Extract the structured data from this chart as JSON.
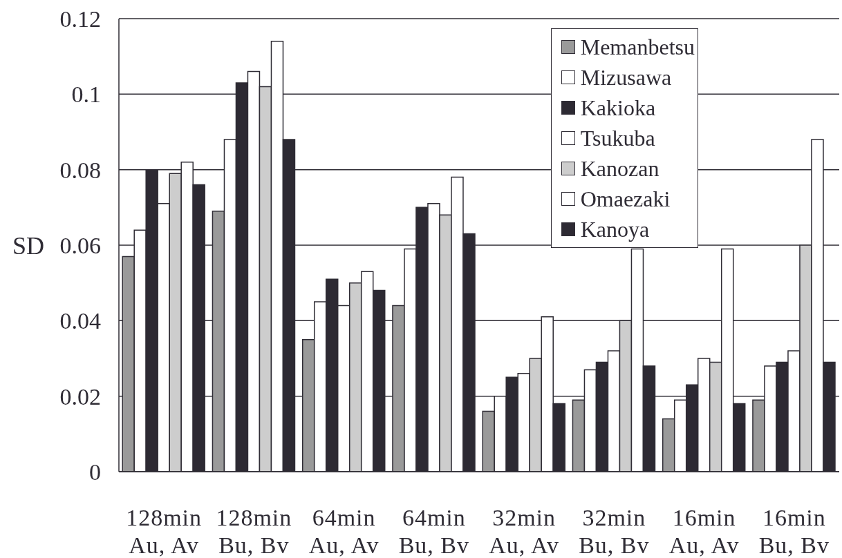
{
  "chart_data": {
    "type": "bar",
    "ylabel": "SD",
    "categories": [
      "128min\nAu, Av",
      "128min\nBu, Bv",
      "64min\nAu, Av",
      "64min\nBu, Bv",
      "32min\nAu, Av",
      "32min\nBu, Bv",
      "16min\nAu, Av",
      "16min\nBu, Bv"
    ],
    "series": [
      {
        "name": "Memanbetsu",
        "color": "#9a9a9a",
        "values": [
          0.057,
          0.069,
          0.035,
          0.044,
          0.016,
          0.019,
          0.014,
          0.019
        ]
      },
      {
        "name": "Mizusawa",
        "color": "#ffffff",
        "values": [
          0.064,
          0.088,
          0.045,
          0.059,
          0.02,
          0.027,
          0.019,
          0.028
        ]
      },
      {
        "name": "Kakioka",
        "color": "#2d2a33",
        "values": [
          0.08,
          0.103,
          0.051,
          0.07,
          0.025,
          0.029,
          0.023,
          0.029
        ]
      },
      {
        "name": "Tsukuba",
        "color": "#ffffff",
        "values": [
          0.071,
          0.106,
          0.044,
          0.071,
          0.026,
          0.032,
          0.03,
          0.032
        ]
      },
      {
        "name": "Kanozan",
        "color": "#cdcdcd",
        "values": [
          0.079,
          0.102,
          0.05,
          0.068,
          0.03,
          0.04,
          0.029,
          0.06
        ]
      },
      {
        "name": "Omaezaki",
        "color": "#ffffff",
        "values": [
          0.082,
          0.114,
          0.053,
          0.078,
          0.041,
          0.059,
          0.059,
          0.088
        ]
      },
      {
        "name": "Kanoya",
        "color": "#2d2a33",
        "values": [
          0.076,
          0.088,
          0.048,
          0.063,
          0.018,
          0.028,
          0.018,
          0.029
        ]
      }
    ],
    "ylim": [
      0,
      0.12
    ],
    "yticks": [
      0,
      0.02,
      0.04,
      0.06,
      0.08,
      0.1,
      0.12
    ],
    "grid": "y",
    "legend": "top right"
  }
}
